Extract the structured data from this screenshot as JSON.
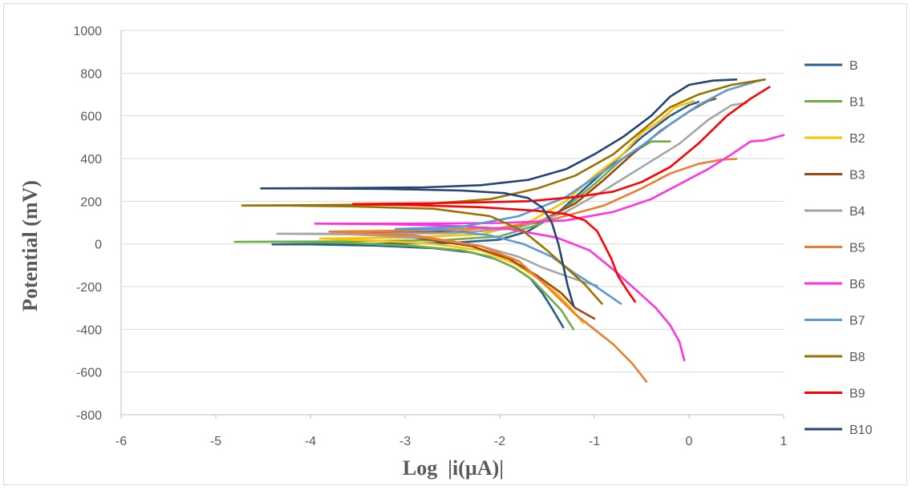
{
  "chart_data": {
    "type": "line",
    "title": "",
    "xlabel": "Log  |i(µA)|",
    "ylabel": "Potential (mV)",
    "xlim": [
      -6,
      1
    ],
    "ylim": [
      -800,
      1000
    ],
    "x_ticks": [
      "-6",
      "-5",
      "-4",
      "-3",
      "-2",
      "-1",
      "0",
      "1"
    ],
    "y_ticks": [
      "1000",
      "800",
      "600",
      "400",
      "200",
      "0",
      "-200",
      "-400",
      "-600",
      "-800"
    ],
    "grid": "horizontal",
    "legend_position": "right",
    "series": [
      {
        "name": "B",
        "color": "#255e91",
        "points": [
          [
            -1.33,
            -390
          ],
          [
            -1.45,
            -300
          ],
          [
            -1.55,
            -230
          ],
          [
            -1.68,
            -160
          ],
          [
            -1.85,
            -110
          ],
          [
            -2.05,
            -70
          ],
          [
            -2.3,
            -40
          ],
          [
            -2.7,
            -20
          ],
          [
            -3.3,
            -8
          ],
          [
            -4.0,
            -2
          ],
          [
            -4.4,
            -2
          ],
          [
            -3.4,
            0
          ],
          [
            -2.5,
            5
          ],
          [
            -2.0,
            20
          ],
          [
            -1.7,
            60
          ],
          [
            -1.4,
            140
          ],
          [
            -1.1,
            260
          ],
          [
            -0.8,
            380
          ],
          [
            -0.5,
            500
          ],
          [
            -0.2,
            600
          ],
          [
            0.0,
            650
          ],
          [
            0.1,
            665
          ]
        ]
      },
      {
        "name": "B1",
        "color": "#70ad47",
        "points": [
          [
            -1.22,
            -400
          ],
          [
            -1.35,
            -310
          ],
          [
            -1.5,
            -240
          ],
          [
            -1.65,
            -170
          ],
          [
            -1.85,
            -110
          ],
          [
            -2.1,
            -60
          ],
          [
            -2.4,
            -30
          ],
          [
            -2.9,
            -10
          ],
          [
            -3.6,
            5
          ],
          [
            -4.3,
            10
          ],
          [
            -4.8,
            10
          ],
          [
            -3.7,
            12
          ],
          [
            -2.6,
            18
          ],
          [
            -2.0,
            35
          ],
          [
            -1.6,
            90
          ],
          [
            -1.3,
            170
          ],
          [
            -1.0,
            280
          ],
          [
            -0.7,
            400
          ],
          [
            -0.4,
            480
          ],
          [
            -0.2,
            480
          ]
        ]
      },
      {
        "name": "B2",
        "color": "#ffc000",
        "points": [
          [
            -1.12,
            -370
          ],
          [
            -1.25,
            -300
          ],
          [
            -1.4,
            -230
          ],
          [
            -1.6,
            -160
          ],
          [
            -1.85,
            -90
          ],
          [
            -2.2,
            -30
          ],
          [
            -2.7,
            0
          ],
          [
            -3.3,
            15
          ],
          [
            -3.9,
            25
          ],
          [
            -3.0,
            30
          ],
          [
            -2.2,
            45
          ],
          [
            -1.7,
            100
          ],
          [
            -1.3,
            200
          ],
          [
            -1.0,
            320
          ],
          [
            -0.7,
            420
          ],
          [
            -0.5,
            520
          ],
          [
            -0.3,
            580
          ],
          [
            -0.15,
            640
          ],
          [
            0.05,
            670
          ]
        ]
      },
      {
        "name": "B3",
        "color": "#9e480e",
        "points": [
          [
            -1.0,
            -350
          ],
          [
            -1.08,
            -330
          ],
          [
            -1.2,
            -300
          ],
          [
            -1.35,
            -230
          ],
          [
            -1.6,
            -150
          ],
          [
            -1.9,
            -70
          ],
          [
            -2.3,
            -10
          ],
          [
            -2.9,
            30
          ],
          [
            -3.7,
            50
          ],
          [
            -3.0,
            52
          ],
          [
            -2.2,
            60
          ],
          [
            -1.6,
            100
          ],
          [
            -1.2,
            190
          ],
          [
            -0.9,
            300
          ],
          [
            -0.6,
            420
          ],
          [
            -0.3,
            530
          ],
          [
            0.0,
            620
          ],
          [
            0.2,
            670
          ],
          [
            0.28,
            680
          ]
        ]
      },
      {
        "name": "B4",
        "color": "#a5a5a5",
        "points": [
          [
            -0.97,
            -195
          ],
          [
            -1.1,
            -180
          ],
          [
            -1.3,
            -150
          ],
          [
            -1.55,
            -110
          ],
          [
            -1.8,
            -60
          ],
          [
            -2.2,
            -10
          ],
          [
            -2.8,
            30
          ],
          [
            -3.6,
            45
          ],
          [
            -4.35,
            48
          ],
          [
            -3.5,
            48
          ],
          [
            -2.5,
            50
          ],
          [
            -1.8,
            75
          ],
          [
            -1.3,
            150
          ],
          [
            -0.9,
            250
          ],
          [
            -0.5,
            360
          ],
          [
            -0.1,
            470
          ],
          [
            0.2,
            580
          ],
          [
            0.45,
            650
          ],
          [
            0.6,
            660
          ]
        ]
      },
      {
        "name": "B5",
        "color": "#ed7d31",
        "points": [
          [
            -0.45,
            -645
          ],
          [
            -0.6,
            -560
          ],
          [
            -0.8,
            -470
          ],
          [
            -1.0,
            -400
          ],
          [
            -1.2,
            -330
          ],
          [
            -1.5,
            -200
          ],
          [
            -1.8,
            -80
          ],
          [
            -2.2,
            -10
          ],
          [
            -2.9,
            40
          ],
          [
            -3.8,
            58
          ],
          [
            -3.0,
            62
          ],
          [
            -2.0,
            75
          ],
          [
            -1.4,
            120
          ],
          [
            -0.9,
            180
          ],
          [
            -0.5,
            260
          ],
          [
            -0.2,
            330
          ],
          [
            0.1,
            375
          ],
          [
            0.35,
            395
          ],
          [
            0.5,
            398
          ]
        ]
      },
      {
        "name": "B6",
        "color": "#ff33e0",
        "points": [
          [
            -0.05,
            -545
          ],
          [
            -0.1,
            -460
          ],
          [
            -0.2,
            -380
          ],
          [
            -0.35,
            -300
          ],
          [
            -0.55,
            -220
          ],
          [
            -0.8,
            -120
          ],
          [
            -1.05,
            -30
          ],
          [
            -1.4,
            30
          ],
          [
            -1.9,
            70
          ],
          [
            -2.5,
            85
          ],
          [
            -3.2,
            92
          ],
          [
            -3.95,
            95
          ],
          [
            -3.0,
            95
          ],
          [
            -2.0,
            98
          ],
          [
            -1.3,
            110
          ],
          [
            -0.8,
            150
          ],
          [
            -0.4,
            210
          ],
          [
            -0.1,
            280
          ],
          [
            0.2,
            350
          ],
          [
            0.45,
            420
          ],
          [
            0.65,
            480
          ],
          [
            0.8,
            485
          ],
          [
            1.0,
            510
          ]
        ]
      },
      {
        "name": "B7",
        "color": "#5b9bd5",
        "points": [
          [
            -0.72,
            -280
          ],
          [
            -0.85,
            -240
          ],
          [
            -1.0,
            -195
          ],
          [
            -1.2,
            -140
          ],
          [
            -1.45,
            -60
          ],
          [
            -1.75,
            0
          ],
          [
            -2.1,
            40
          ],
          [
            -2.6,
            65
          ],
          [
            -3.1,
            70
          ],
          [
            -2.4,
            80
          ],
          [
            -1.8,
            130
          ],
          [
            -1.3,
            220
          ],
          [
            -0.9,
            340
          ],
          [
            -0.5,
            460
          ],
          [
            -0.2,
            560
          ],
          [
            0.1,
            650
          ],
          [
            0.4,
            720
          ],
          [
            0.7,
            760
          ],
          [
            0.8,
            770
          ]
        ]
      },
      {
        "name": "B8",
        "color": "#997300",
        "points": [
          [
            -0.92,
            -280
          ],
          [
            -1.0,
            -240
          ],
          [
            -1.1,
            -190
          ],
          [
            -1.3,
            -110
          ],
          [
            -1.5,
            -30
          ],
          [
            -1.75,
            60
          ],
          [
            -2.1,
            130
          ],
          [
            -2.7,
            165
          ],
          [
            -3.6,
            176
          ],
          [
            -4.3,
            180
          ],
          [
            -4.72,
            180
          ],
          [
            -3.8,
            182
          ],
          [
            -2.8,
            186
          ],
          [
            -2.1,
            210
          ],
          [
            -1.6,
            260
          ],
          [
            -1.2,
            320
          ],
          [
            -0.8,
            420
          ],
          [
            -0.5,
            530
          ],
          [
            -0.2,
            640
          ],
          [
            0.1,
            700
          ],
          [
            0.45,
            745
          ],
          [
            0.8,
            770
          ]
        ]
      },
      {
        "name": "B9",
        "color": "#ff0000",
        "points": [
          [
            -0.57,
            -270
          ],
          [
            -0.65,
            -220
          ],
          [
            -0.75,
            -150
          ],
          [
            -0.82,
            -70
          ],
          [
            -0.9,
            0
          ],
          [
            -0.97,
            60
          ],
          [
            -1.1,
            110
          ],
          [
            -1.3,
            140
          ],
          [
            -1.6,
            155
          ],
          [
            -2.2,
            172
          ],
          [
            -3.0,
            183
          ],
          [
            -3.55,
            187
          ],
          [
            -2.8,
            190
          ],
          [
            -2.2,
            195
          ],
          [
            -1.7,
            200
          ],
          [
            -1.2,
            220
          ],
          [
            -0.8,
            245
          ],
          [
            -0.5,
            290
          ],
          [
            -0.2,
            360
          ],
          [
            0.1,
            470
          ],
          [
            0.4,
            600
          ],
          [
            0.65,
            680
          ],
          [
            0.85,
            735
          ]
        ]
      },
      {
        "name": "B10",
        "color": "#264478",
        "points": [
          [
            -1.22,
            -290
          ],
          [
            -1.28,
            -200
          ],
          [
            -1.33,
            -100
          ],
          [
            -1.38,
            0
          ],
          [
            -1.45,
            100
          ],
          [
            -1.55,
            170
          ],
          [
            -1.7,
            215
          ],
          [
            -1.95,
            238
          ],
          [
            -2.4,
            250
          ],
          [
            -3.2,
            258
          ],
          [
            -4.0,
            260
          ],
          [
            -4.52,
            260
          ],
          [
            -3.6,
            262
          ],
          [
            -2.8,
            265
          ],
          [
            -2.2,
            275
          ],
          [
            -1.7,
            300
          ],
          [
            -1.3,
            350
          ],
          [
            -1.0,
            420
          ],
          [
            -0.7,
            500
          ],
          [
            -0.4,
            600
          ],
          [
            -0.2,
            690
          ],
          [
            0.0,
            745
          ],
          [
            0.25,
            765
          ],
          [
            0.5,
            770
          ]
        ]
      }
    ]
  }
}
